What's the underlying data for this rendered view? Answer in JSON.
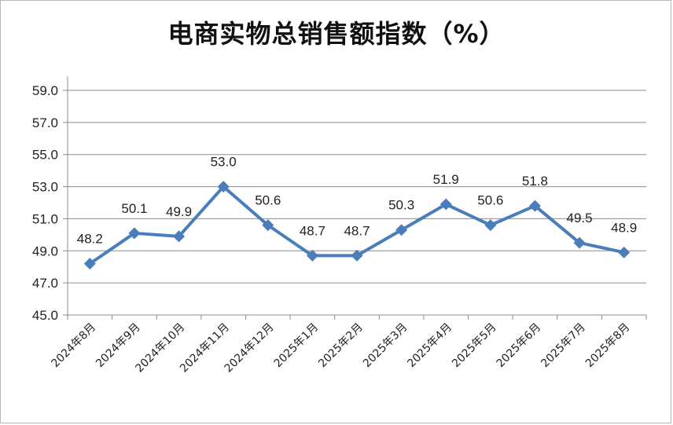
{
  "chart_data": {
    "type": "line",
    "title": "电商实物总销售额指数（%）",
    "xlabel": "",
    "ylabel": "",
    "categories": [
      "2024年8月",
      "2024年9月",
      "2024年10月",
      "2024年11月",
      "2024年12月",
      "2025年1月",
      "2025年2月",
      "2025年3月",
      "2025年4月",
      "2025年5月",
      "2025年6月",
      "2025年7月",
      "2025年8月"
    ],
    "series": [
      {
        "values": [
          48.2,
          50.1,
          49.9,
          53.0,
          50.6,
          48.7,
          48.7,
          50.3,
          51.9,
          50.6,
          51.8,
          49.5,
          48.9
        ],
        "data_labels": [
          "48.2",
          "50.1",
          "49.9",
          "53.0",
          "50.6",
          "48.7",
          "48.7",
          "50.3",
          "51.9",
          "50.6",
          "51.8",
          "49.5",
          "48.9"
        ],
        "color": "#4a7ebb",
        "marker": "diamond"
      }
    ],
    "yticks": [
      "45.0",
      "47.0",
      "49.0",
      "51.0",
      "53.0",
      "55.0",
      "57.0",
      "59.0"
    ],
    "ylim": [
      45.0,
      59.0
    ],
    "grid": true,
    "legend": "none"
  }
}
